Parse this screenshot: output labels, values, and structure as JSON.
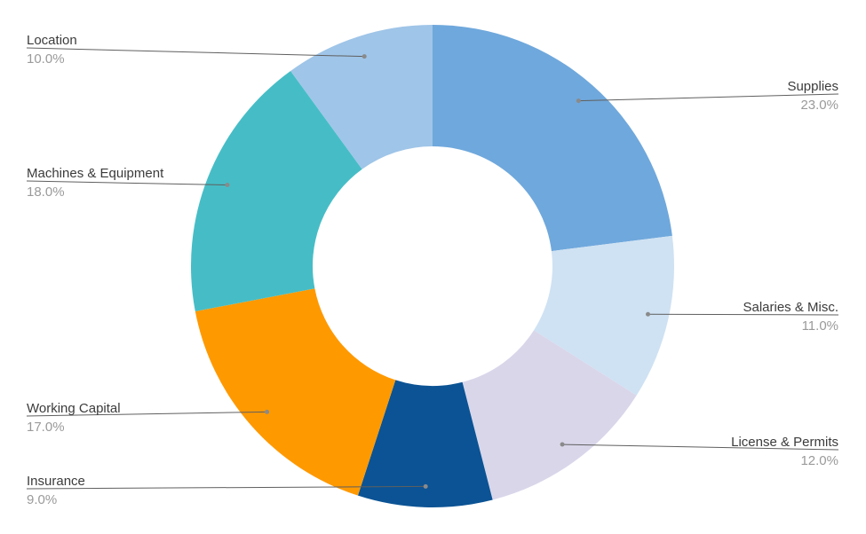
{
  "chart_data": {
    "type": "pie",
    "variant": "donut",
    "start": "top, clockwise",
    "slices": [
      {
        "label": "Supplies",
        "value": 23.0,
        "display": "23.0%",
        "color": "#6fa8dc"
      },
      {
        "label": "Salaries & Misc.",
        "value": 11.0,
        "display": "11.0%",
        "color": "#cfe2f3"
      },
      {
        "label": "License & Permits",
        "value": 12.0,
        "display": "12.0%",
        "color": "#d9d6ea"
      },
      {
        "label": "Insurance",
        "value": 9.0,
        "display": "9.0%",
        "color": "#0b5394"
      },
      {
        "label": "Working Capital",
        "value": 17.0,
        "display": "17.0%",
        "color": "#ff9900"
      },
      {
        "label": "Machines & Equipment",
        "value": 18.0,
        "display": "18.0%",
        "color": "#46bdc6"
      },
      {
        "label": "Location",
        "value": 10.0,
        "display": "10.0%",
        "color": "#9fc5e8"
      }
    ],
    "legend": "none (outside labels with leader lines)"
  }
}
